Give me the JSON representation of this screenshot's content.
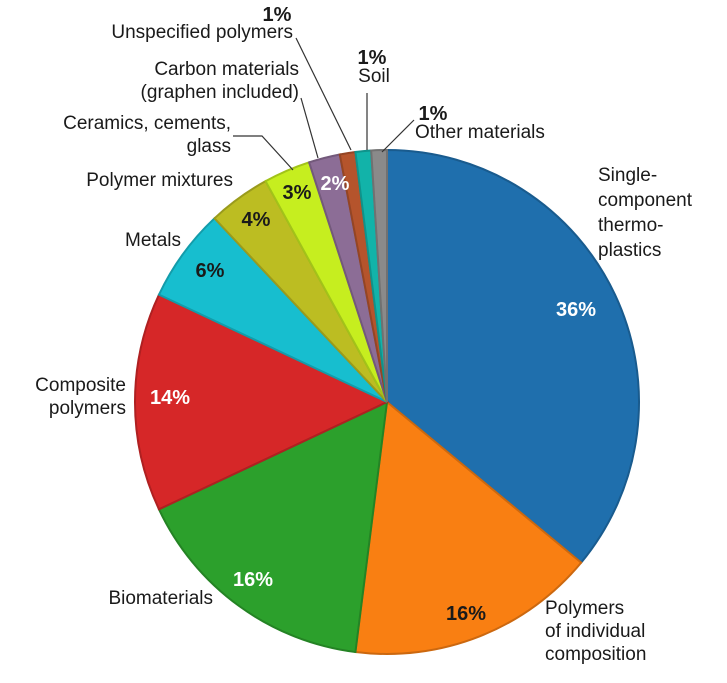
{
  "chart_data": {
    "type": "pie",
    "title": "",
    "legend": "none",
    "slices": [
      {
        "label": [
          "Single-",
          "component",
          "thermo-",
          "plastics"
        ],
        "value": 36,
        "pct_text": "36%",
        "color": "#1f6fad",
        "pct_text_color": "#ffffff"
      },
      {
        "label": [
          "Polymers",
          "of individual",
          "composition"
        ],
        "value": 16,
        "pct_text": "16%",
        "color": "#f97f12",
        "pct_text_color": "#1a1a1a"
      },
      {
        "label": [
          "Biomaterials"
        ],
        "value": 16,
        "pct_text": "16%",
        "color": "#2ca02c",
        "pct_text_color": "#ffffff"
      },
      {
        "label": [
          "Composite",
          "polymers"
        ],
        "value": 14,
        "pct_text": "14%",
        "color": "#d62728",
        "pct_text_color": "#ffffff"
      },
      {
        "label": [
          "Metals"
        ],
        "value": 6,
        "pct_text": "6%",
        "color": "#17becf",
        "pct_text_color": "#1a1a1a"
      },
      {
        "label": [
          "Polymer mixtures"
        ],
        "value": 4,
        "pct_text": "4%",
        "color": "#bcbd22",
        "pct_text_color": "#1a1a1a"
      },
      {
        "label": [
          "Ceramics, cements,",
          "glass"
        ],
        "value": 3,
        "pct_text": "3%",
        "color": "#c6ee1f",
        "pct_text_color": "#1a1a1a"
      },
      {
        "label": [
          "Carbon materials",
          "(graphen included)"
        ],
        "value": 2,
        "pct_text": "2%",
        "color": "#8c6d96",
        "pct_text_color": "#ffffff"
      },
      {
        "label": [
          "Unspecified polymers"
        ],
        "value": 1,
        "pct_text": "1%",
        "color": "#b5542c",
        "pct_text_color": "#1a1a1a"
      },
      {
        "label": [
          "Soil"
        ],
        "value": 1,
        "pct_text": "1%",
        "color": "#12b3a9",
        "pct_text_color": "#1a1a1a"
      },
      {
        "label": [
          "Other materials"
        ],
        "value": 1,
        "pct_text": "1%",
        "color": "#8a8a8a",
        "pct_text_color": "#1a1a1a"
      }
    ]
  }
}
